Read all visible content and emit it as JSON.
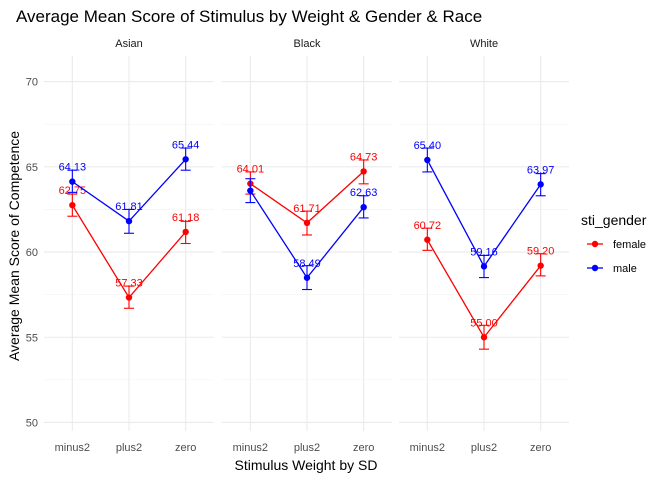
{
  "chart_data": {
    "type": "line",
    "title": "Average Mean Score of Stimulus by Weight & Gender & Race",
    "xlabel": "Stimulus Weight by SD",
    "ylabel": "Average Mean Score of Competence",
    "categories": [
      "minus2",
      "plus2",
      "zero"
    ],
    "ylim": [
      49.5,
      71.5
    ],
    "yticks": [
      50,
      55,
      60,
      65,
      70
    ],
    "grid": true,
    "legend": {
      "title": "sti_gender",
      "position": "right"
    },
    "colors": {
      "female": "#ff0000",
      "male": "#0000ff"
    },
    "facets": [
      {
        "name": "Asian",
        "series": [
          {
            "name": "female",
            "values": [
              62.75,
              57.33,
              61.18
            ],
            "labels": [
              "62.75",
              "57.33",
              "61.18"
            ],
            "lower": [
              62.1,
              56.7,
              60.5
            ],
            "upper": [
              63.4,
              58.0,
              61.8
            ]
          },
          {
            "name": "male",
            "values": [
              64.13,
              61.81,
              65.44
            ],
            "labels": [
              "64.13",
              "61.81",
              "65.44"
            ],
            "lower": [
              63.5,
              61.1,
              64.8
            ],
            "upper": [
              64.8,
              62.5,
              66.1
            ]
          }
        ]
      },
      {
        "name": "Black",
        "series": [
          {
            "name": "female",
            "values": [
              64.01,
              61.71,
              64.73
            ],
            "labels": [
              "64.01",
              "61.71",
              "64.73"
            ],
            "lower": [
              63.4,
              61.0,
              64.0
            ],
            "upper": [
              64.7,
              62.4,
              65.4
            ]
          },
          {
            "name": "male",
            "values": [
              63.6,
              58.49,
              62.63
            ],
            "labels": [
              "",
              "58.49",
              "62.63"
            ],
            "lower": [
              62.9,
              57.8,
              62.0
            ],
            "upper": [
              64.3,
              59.2,
              63.3
            ]
          }
        ]
      },
      {
        "name": "White",
        "series": [
          {
            "name": "female",
            "values": [
              60.72,
              55.0,
              59.2
            ],
            "labels": [
              "60.72",
              "55.00",
              "59.20"
            ],
            "lower": [
              60.1,
              54.3,
              58.6
            ],
            "upper": [
              61.4,
              55.7,
              59.9
            ]
          },
          {
            "name": "male",
            "values": [
              65.4,
              59.16,
              63.97
            ],
            "labels": [
              "65.40",
              "59.16",
              "63.97"
            ],
            "lower": [
              64.7,
              58.5,
              63.3
            ],
            "upper": [
              66.1,
              59.8,
              64.6
            ]
          }
        ]
      }
    ]
  }
}
